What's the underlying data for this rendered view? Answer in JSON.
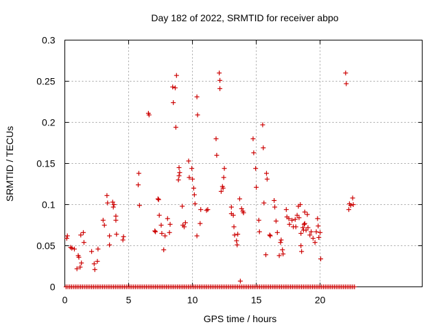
{
  "chart_data": {
    "type": "scatter",
    "title": "Day 182 of 2022, SRMTID for receiver abpo",
    "xlabel": "GPS time / hours",
    "ylabel": "SRMTID / TECUs",
    "xlim": [
      0,
      28
    ],
    "ylim": [
      0,
      0.3
    ],
    "xticks": [
      0,
      5,
      10,
      15,
      20
    ],
    "yticks": [
      0,
      0.05,
      0.1,
      0.15,
      0.2,
      0.25,
      0.3
    ],
    "xtick_labels": [
      "0",
      "5",
      "10",
      "15",
      "20"
    ],
    "ytick_labels": [
      "0",
      "0.05",
      "0.1",
      "0.15",
      "0.2",
      "0.25",
      "0.3"
    ],
    "grid": true,
    "marker": "+",
    "color": "#cc0000",
    "zero_baseline": {
      "x_start": 0.1,
      "x_end": 22.8,
      "step": 0.143,
      "y": 0
    },
    "points": [
      [
        0.15,
        0.059
      ],
      [
        0.2,
        0.062
      ],
      [
        0.45,
        0.048
      ],
      [
        0.55,
        0.047
      ],
      [
        0.75,
        0.046
      ],
      [
        0.95,
        0.022
      ],
      [
        1.05,
        0.038
      ],
      [
        1.1,
        0.036
      ],
      [
        1.2,
        0.024
      ],
      [
        1.3,
        0.029
      ],
      [
        1.25,
        0.063
      ],
      [
        1.45,
        0.066
      ],
      [
        1.5,
        0.054
      ],
      [
        2.1,
        0.043
      ],
      [
        2.3,
        0.028
      ],
      [
        2.35,
        0.021
      ],
      [
        2.55,
        0.031
      ],
      [
        2.6,
        0.046
      ],
      [
        3.0,
        0.081
      ],
      [
        3.1,
        0.075
      ],
      [
        3.3,
        0.111
      ],
      [
        3.35,
        0.102
      ],
      [
        3.5,
        0.051
      ],
      [
        3.5,
        0.062
      ],
      [
        3.75,
        0.103
      ],
      [
        3.8,
        0.097
      ],
      [
        3.85,
        0.1
      ],
      [
        4.0,
        0.081
      ],
      [
        4.0,
        0.086
      ],
      [
        4.05,
        0.064
      ],
      [
        4.55,
        0.057
      ],
      [
        4.6,
        0.061
      ],
      [
        5.75,
        0.124
      ],
      [
        5.8,
        0.138
      ],
      [
        5.85,
        0.099
      ],
      [
        6.55,
        0.211
      ],
      [
        6.6,
        0.209
      ],
      [
        7.05,
        0.068
      ],
      [
        7.1,
        0.067
      ],
      [
        7.3,
        0.107
      ],
      [
        7.35,
        0.106
      ],
      [
        7.4,
        0.087
      ],
      [
        7.55,
        0.075
      ],
      [
        7.6,
        0.065
      ],
      [
        7.75,
        0.045
      ],
      [
        7.85,
        0.062
      ],
      [
        8.05,
        0.083
      ],
      [
        8.2,
        0.066
      ],
      [
        8.25,
        0.076
      ],
      [
        8.45,
        0.243
      ],
      [
        8.5,
        0.224
      ],
      [
        8.65,
        0.242
      ],
      [
        8.7,
        0.194
      ],
      [
        8.75,
        0.257
      ],
      [
        8.9,
        0.13
      ],
      [
        8.95,
        0.135
      ],
      [
        8.95,
        0.145
      ],
      [
        9.0,
        0.139
      ],
      [
        9.2,
        0.098
      ],
      [
        9.25,
        0.075
      ],
      [
        9.35,
        0.073
      ],
      [
        9.45,
        0.078
      ],
      [
        9.7,
        0.153
      ],
      [
        9.75,
        0.133
      ],
      [
        9.95,
        0.144
      ],
      [
        10.0,
        0.131
      ],
      [
        10.1,
        0.12
      ],
      [
        10.15,
        0.112
      ],
      [
        10.2,
        0.101
      ],
      [
        10.35,
        0.231
      ],
      [
        10.4,
        0.209
      ],
      [
        10.35,
        0.062
      ],
      [
        10.6,
        0.077
      ],
      [
        10.65,
        0.094
      ],
      [
        11.1,
        0.093
      ],
      [
        11.2,
        0.094
      ],
      [
        11.85,
        0.18
      ],
      [
        11.9,
        0.16
      ],
      [
        12.1,
        0.26
      ],
      [
        12.15,
        0.251
      ],
      [
        12.15,
        0.241
      ],
      [
        12.25,
        0.116
      ],
      [
        12.35,
        0.122
      ],
      [
        12.4,
        0.12
      ],
      [
        12.45,
        0.133
      ],
      [
        12.5,
        0.144
      ],
      [
        13.05,
        0.097
      ],
      [
        13.05,
        0.089
      ],
      [
        13.2,
        0.087
      ],
      [
        13.25,
        0.073
      ],
      [
        13.3,
        0.063
      ],
      [
        13.45,
        0.056
      ],
      [
        13.5,
        0.051
      ],
      [
        13.55,
        0.064
      ],
      [
        13.7,
        0.107
      ],
      [
        13.75,
        0.007
      ],
      [
        13.85,
        0.095
      ],
      [
        13.95,
        0.092
      ],
      [
        14.0,
        0.09
      ],
      [
        14.75,
        0.18
      ],
      [
        14.8,
        0.163
      ],
      [
        14.95,
        0.144
      ],
      [
        15.0,
        0.121
      ],
      [
        15.2,
        0.081
      ],
      [
        15.25,
        0.067
      ],
      [
        15.5,
        0.197
      ],
      [
        15.55,
        0.169
      ],
      [
        15.6,
        0.102
      ],
      [
        15.75,
        0.039
      ],
      [
        15.8,
        0.138
      ],
      [
        15.85,
        0.131
      ],
      [
        16.05,
        0.063
      ],
      [
        16.1,
        0.062
      ],
      [
        16.4,
        0.105
      ],
      [
        16.45,
        0.097
      ],
      [
        16.55,
        0.08
      ],
      [
        16.65,
        0.066
      ],
      [
        16.8,
        0.038
      ],
      [
        16.9,
        0.054
      ],
      [
        16.95,
        0.057
      ],
      [
        17.05,
        0.045
      ],
      [
        17.1,
        0.04
      ],
      [
        17.35,
        0.094
      ],
      [
        17.4,
        0.085
      ],
      [
        17.55,
        0.083
      ],
      [
        17.6,
        0.076
      ],
      [
        17.8,
        0.081
      ],
      [
        17.9,
        0.073
      ],
      [
        18.05,
        0.082
      ],
      [
        18.1,
        0.073
      ],
      [
        18.2,
        0.087
      ],
      [
        18.3,
        0.098
      ],
      [
        18.35,
        0.084
      ],
      [
        18.45,
        0.1
      ],
      [
        18.5,
        0.065
      ],
      [
        18.5,
        0.05
      ],
      [
        18.55,
        0.043
      ],
      [
        18.65,
        0.072
      ],
      [
        18.7,
        0.069
      ],
      [
        18.75,
        0.076
      ],
      [
        18.8,
        0.091
      ],
      [
        18.8,
        0.077
      ],
      [
        18.9,
        0.069
      ],
      [
        19.0,
        0.088
      ],
      [
        19.05,
        0.072
      ],
      [
        19.2,
        0.063
      ],
      [
        19.3,
        0.067
      ],
      [
        19.45,
        0.059
      ],
      [
        19.6,
        0.054
      ],
      [
        19.7,
        0.067
      ],
      [
        19.8,
        0.083
      ],
      [
        19.85,
        0.074
      ],
      [
        19.9,
        0.06
      ],
      [
        20.0,
        0.066
      ],
      [
        20.05,
        0.034
      ],
      [
        22.0,
        0.26
      ],
      [
        22.05,
        0.247
      ],
      [
        22.25,
        0.094
      ],
      [
        22.3,
        0.101
      ],
      [
        22.4,
        0.099
      ],
      [
        22.55,
        0.108
      ],
      [
        22.6,
        0.1
      ]
    ]
  }
}
